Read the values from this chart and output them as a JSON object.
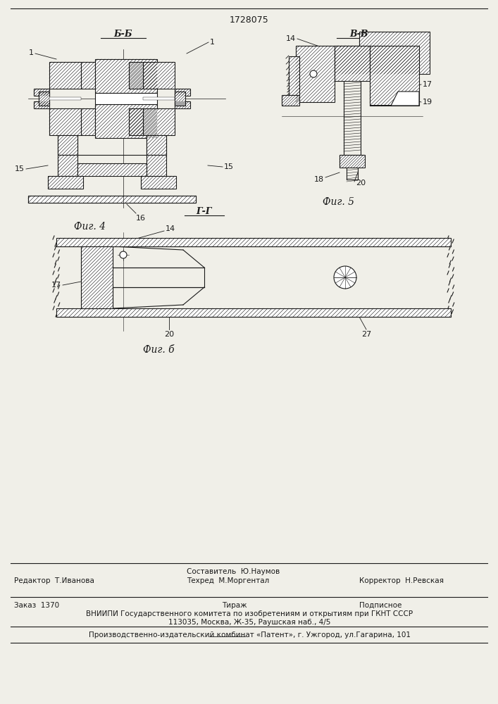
{
  "patent_number": "1728075",
  "bg_color": "#f0efe8",
  "line_color": "#1a1a1a",
  "fig4_label": "Б-Б",
  "fig5_label": "В-В",
  "fig6_label": "Г-Г",
  "fig4_caption": "Фиг. 4",
  "fig5_caption": "Фиг. 5",
  "fig6_caption": "Фиг. б",
  "footer_redaktor": "Редактор  Т.Иванова",
  "footer_sostavitel": "Составитель  Ю.Наумов",
  "footer_korrektor": "Корректор  Н.Ревская",
  "footer_tehred": "Техред  М.Моргентал",
  "footer_zakaz": "Заказ  1370",
  "footer_tirazh": "Тираж",
  "footer_podpisnoe": "Подписное",
  "footer_vnipi": "ВНИИПИ Государственного комитета по изобретениям и открытиям при ГКНТ СССР",
  "footer_address": "113035, Москва, Ж-35, Раушская наб., 4/5",
  "footer_patent": "Производственно-издательский комбинат «Патент», г. Ужгород, ул.Гагарина, 101"
}
